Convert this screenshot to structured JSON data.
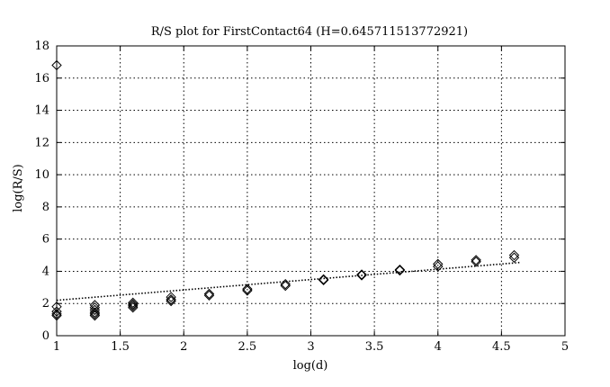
{
  "chart_data": {
    "type": "scatter",
    "title": "R/S plot for FirstContact64 (H=0.645711513772921)",
    "xlabel": "log(d)",
    "ylabel": "log(R/S)",
    "xlim": [
      1,
      5
    ],
    "ylim": [
      0,
      18
    ],
    "grid": true,
    "x_ticks": [
      "1",
      "1.5",
      "2",
      "2.5",
      "3",
      "3.5",
      "4",
      "4.5",
      "5"
    ],
    "y_ticks": [
      "0",
      "2",
      "4",
      "6",
      "8",
      "10",
      "12",
      "14",
      "16",
      "18"
    ],
    "points": [
      [
        1.0,
        16.8
      ],
      [
        1.0,
        1.8
      ],
      [
        1.0,
        1.5
      ],
      [
        1.0,
        1.35
      ],
      [
        1.0,
        1.25
      ],
      [
        1.3,
        1.9
      ],
      [
        1.3,
        1.75
      ],
      [
        1.3,
        1.6
      ],
      [
        1.3,
        1.45
      ],
      [
        1.3,
        1.35
      ],
      [
        1.3,
        1.25
      ],
      [
        1.6,
        2.05
      ],
      [
        1.6,
        1.95
      ],
      [
        1.6,
        1.85
      ],
      [
        1.6,
        1.75
      ],
      [
        1.9,
        2.4
      ],
      [
        1.9,
        2.25
      ],
      [
        1.9,
        2.15
      ],
      [
        2.2,
        2.6
      ],
      [
        2.2,
        2.5
      ],
      [
        2.5,
        2.9
      ],
      [
        2.5,
        2.8
      ],
      [
        2.8,
        3.2
      ],
      [
        2.8,
        3.1
      ],
      [
        3.1,
        3.5
      ],
      [
        3.1,
        3.45
      ],
      [
        3.4,
        3.8
      ],
      [
        3.4,
        3.75
      ],
      [
        3.7,
        4.1
      ],
      [
        3.7,
        4.05
      ],
      [
        4.0,
        4.45
      ],
      [
        4.0,
        4.3
      ],
      [
        4.3,
        4.7
      ],
      [
        4.3,
        4.6
      ],
      [
        4.6,
        5.0
      ],
      [
        4.6,
        4.85
      ]
    ],
    "fit_line": {
      "x": [
        1.0,
        4.65
      ],
      "y": [
        2.2,
        4.55
      ]
    }
  }
}
